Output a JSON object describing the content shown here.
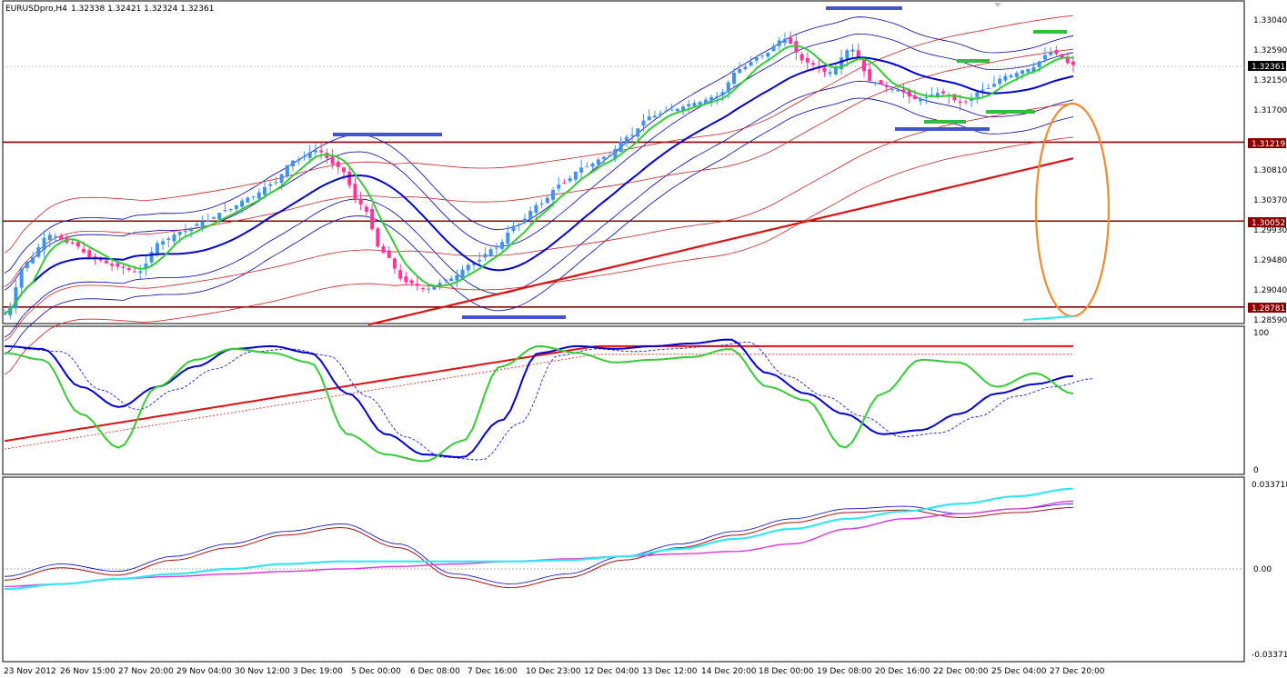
{
  "header": {
    "symbol": "EURUSDpro,H4",
    "ohlc": "1.32338 1.32421 1.32324 1.32361"
  },
  "colors": {
    "bull_candle": "#3d94f0",
    "bear_candle": "#ff3399",
    "ma_green": "#33cc33",
    "ma_blue": "#0000cc",
    "ma_red": "#dd1111",
    "band_thin_blue": "#0000aa",
    "band_thin_red": "#cc2222",
    "level_line": "#8b0000",
    "circle": "#f08a2c",
    "marker_blue": "#4455cc",
    "marker_green": "#33bb44",
    "cyan": "#33e6f2",
    "magenta": "#dd33dd",
    "darkred": "#aa1111"
  },
  "price_axis": {
    "ticks": [
      "1.33040",
      "1.32590",
      "1.32150",
      "1.31700",
      "1.30810",
      "1.30370",
      "1.29930",
      "1.29480",
      "1.29040",
      "1.28590"
    ],
    "current_price": "1.32361",
    "levels": [
      {
        "label": "1.31219"
      },
      {
        "label": "1.30052"
      },
      {
        "label": "1.28781"
      }
    ]
  },
  "stoch_axis": {
    "ticks": [
      "100",
      "0"
    ]
  },
  "macd_axis": {
    "ticks": [
      "0.033718",
      "0.00",
      "-0.03371"
    ]
  },
  "time_axis": {
    "ticks": [
      "23 Nov 2012",
      "26 Nov 15:00",
      "27 Nov 20:00",
      "29 Nov 04:00",
      "30 Nov 12:00",
      "3 Dec 19:00",
      "5 Dec 00:00",
      "6 Dec 08:00",
      "7 Dec 16:00",
      "10 Dec 23:00",
      "12 Dec 04:00",
      "13 Dec 12:00",
      "14 Dec 20:00",
      "18 Dec 00:00",
      "19 Dec 08:00",
      "20 Dec 16:00",
      "22 Dec 00:00",
      "25 Dec 04:00",
      "27 Dec 20:00"
    ]
  },
  "chart_data": [
    {
      "type": "candlestick",
      "panel": "price",
      "symbol": "EURUSDpro",
      "timeframe": "H4",
      "ylim": [
        1.2859,
        1.3304
      ],
      "x": [
        "23 Nov 2012",
        "26 Nov 15:00",
        "27 Nov 20:00",
        "29 Nov 04:00",
        "30 Nov 12:00",
        "3 Dec 19:00",
        "5 Dec 00:00",
        "6 Dec 08:00",
        "7 Dec 16:00",
        "10 Dec 23:00",
        "12 Dec 04:00",
        "13 Dec 12:00",
        "14 Dec 20:00",
        "18 Dec 00:00",
        "19 Dec 08:00",
        "20 Dec 16:00",
        "22 Dec 00:00",
        "25 Dec 04:00",
        "27 Dec 20:00"
      ],
      "close_path": [
        1.2868,
        1.2945,
        1.2985,
        1.2972,
        1.295,
        1.2938,
        1.293,
        1.2975,
        1.299,
        1.3005,
        1.3022,
        1.304,
        1.306,
        1.3095,
        1.311,
        1.3085,
        1.303,
        1.2958,
        1.2915,
        1.2905,
        1.292,
        1.2942,
        1.2965,
        1.3,
        1.303,
        1.306,
        1.3085,
        1.31,
        1.313,
        1.316,
        1.317,
        1.318,
        1.319,
        1.323,
        1.325,
        1.3275,
        1.324,
        1.3225,
        1.326,
        1.321,
        1.32,
        1.3185,
        1.3195,
        1.318,
        1.32,
        1.322,
        1.323,
        1.3255,
        1.3236
      ],
      "horizontal_levels": [
        1.31219,
        1.30052,
        1.28781
      ]
    },
    {
      "type": "line",
      "panel": "stochastic",
      "ylim": [
        0,
        100
      ],
      "series": [
        {
          "color": "green",
          "values": [
            85,
            80,
            40,
            15,
            60,
            80,
            88,
            85,
            78,
            25,
            10,
            5,
            20,
            75,
            90,
            85,
            78,
            80,
            82,
            88,
            60,
            50,
            15,
            55,
            80,
            78,
            60,
            70,
            55
          ]
        },
        {
          "color": "blue",
          "values": [
            90,
            88,
            60,
            45,
            60,
            75,
            88,
            90,
            85,
            55,
            25,
            10,
            8,
            35,
            85,
            90,
            88,
            90,
            92,
            95,
            70,
            55,
            40,
            25,
            28,
            40,
            55,
            62,
            68
          ]
        }
      ]
    },
    {
      "type": "line",
      "panel": "macd",
      "ylim": [
        -0.03371,
        0.033718
      ],
      "series": [
        {
          "color": "cyan",
          "values": [
            -0.008,
            -0.006,
            -0.004,
            -0.002,
            0.0,
            0.002,
            0.003,
            0.003,
            0.003,
            0.003,
            0.0035,
            0.005,
            0.008,
            0.012,
            0.016,
            0.02,
            0.023,
            0.026,
            0.029,
            0.032
          ]
        },
        {
          "color": "magenta",
          "values": [
            -0.007,
            -0.006,
            -0.004,
            -0.003,
            -0.002,
            -0.001,
            0.0,
            0.001,
            0.002,
            0.003,
            0.004,
            0.005,
            0.006,
            0.007,
            0.01,
            0.016,
            0.02,
            0.022,
            0.024,
            0.027
          ]
        },
        {
          "color": "darkred",
          "values": [
            -0.003,
            0.002,
            -0.001,
            0.005,
            0.01,
            0.015,
            0.018,
            0.01,
            -0.002,
            -0.006,
            -0.002,
            0.005,
            0.01,
            0.015,
            0.02,
            0.024,
            0.025,
            0.022,
            0.024,
            0.026
          ]
        }
      ]
    }
  ]
}
